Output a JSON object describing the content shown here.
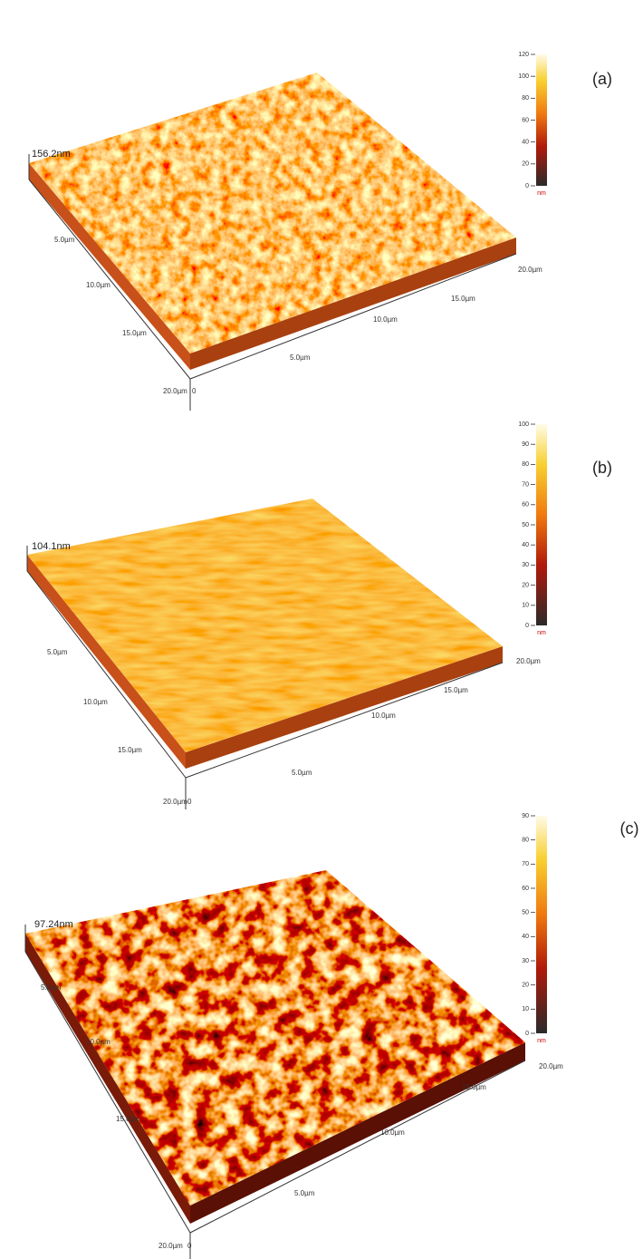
{
  "panels": [
    {
      "label": "(a)",
      "height_label": "156.2nm",
      "left_axis_labels": [
        "5.0µm",
        "10.0µm",
        "15.0µm",
        "20.0µm"
      ],
      "front_axis_labels": [
        "5.0µm",
        "10.0µm",
        "15.0µm",
        "20.0µm"
      ],
      "origin_label": "0",
      "colorbar": {
        "ticks": [
          "0",
          "20",
          "40",
          "60",
          "80",
          "100",
          "120"
        ],
        "unit": "nm"
      }
    },
    {
      "label": "(b)",
      "height_label": "104.1nm",
      "left_axis_labels": [
        "5.0µm",
        "10.0µm",
        "15.0µm",
        "20.0µm"
      ],
      "front_axis_labels": [
        "5.0µm",
        "10.0µm",
        "15.0µm",
        "20.0µm"
      ],
      "origin_label": "0",
      "colorbar": {
        "ticks": [
          "0",
          "10",
          "20",
          "30",
          "40",
          "50",
          "60",
          "70",
          "80",
          "90",
          "100"
        ],
        "unit": "nm"
      }
    },
    {
      "label": "(c)",
      "height_label": "97.24nm",
      "left_axis_labels": [
        "5.0µm",
        "10.0µm",
        "15.0µm",
        "20.0µm"
      ],
      "front_axis_labels": [
        "5.0µm",
        "10.0µm",
        "15.0µm",
        "20.0µm"
      ],
      "origin_label": "0",
      "colorbar": {
        "ticks": [
          "0",
          "10",
          "20",
          "30",
          "40",
          "50",
          "60",
          "70",
          "80",
          "90"
        ],
        "unit": "nm"
      }
    }
  ]
}
